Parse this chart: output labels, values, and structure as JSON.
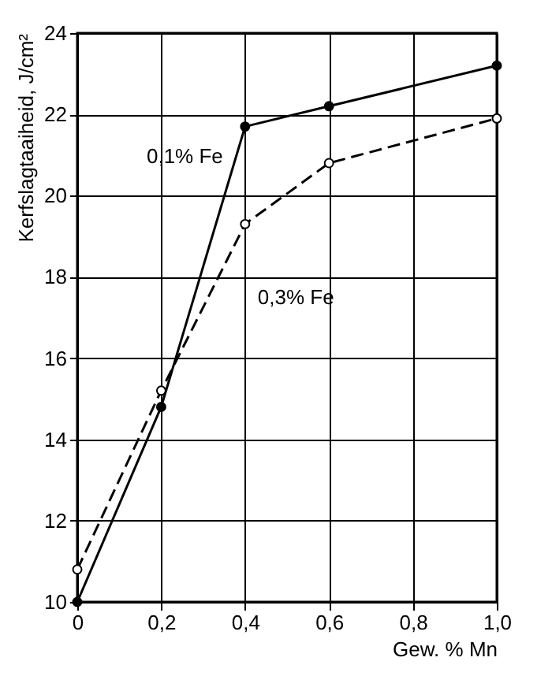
{
  "chart_data": {
    "type": "line",
    "x": [
      0,
      0.2,
      0.4,
      0.6,
      1.0
    ],
    "series": [
      {
        "name": "0,1% Fe",
        "color": "#000000",
        "values": [
          10.0,
          14.8,
          21.7,
          22.2,
          23.2
        ],
        "line_style": "solid"
      },
      {
        "name": "0,3% Fe",
        "color": "#000000",
        "values": [
          10.8,
          15.2,
          19.3,
          20.8,
          21.9
        ],
        "line_style": "dashed"
      }
    ],
    "xlabel": "Gew. % Mn",
    "ylabel": "Kerfslagtaaiheid, J/cm²",
    "xlim": [
      0,
      1.0
    ],
    "xticks": [
      0,
      {
        "value": 0.2,
        "label": "0,2"
      },
      {
        "value": 0.4,
        "label": "0,4"
      },
      {
        "value": 0.6,
        "label": "0,6"
      },
      {
        "value": 0.8,
        "label": "0,8"
      },
      {
        "value": 1.0,
        "label": "1,0"
      }
    ],
    "ylim": [
      10,
      24
    ],
    "yticks": [
      10,
      12,
      14,
      16,
      18,
      20,
      22,
      24
    ],
    "grid": true,
    "marker": "circle"
  }
}
